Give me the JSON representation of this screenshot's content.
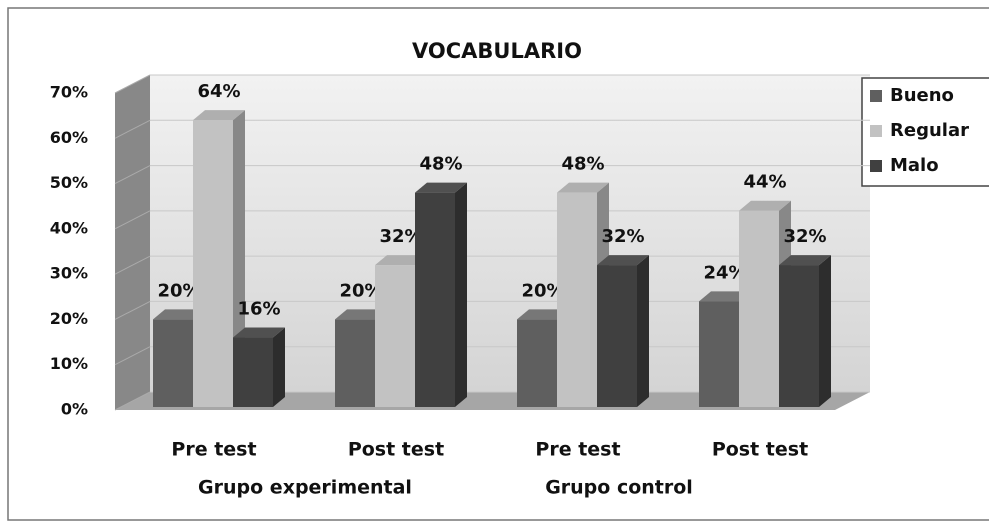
{
  "chart_data": {
    "type": "bar3d",
    "title": "VOCABULARIO",
    "categories": [
      "Pre test",
      "Post test",
      "Pre test",
      "Post test"
    ],
    "group_labels": [
      "Grupo experimental",
      "Grupo control"
    ],
    "series": [
      {
        "name": "Bueno",
        "color": "#5f5f5f",
        "values": [
          20,
          20,
          20,
          24
        ],
        "value_labels": [
          "20%",
          "20%",
          "20%",
          "24%"
        ]
      },
      {
        "name": "Regular",
        "color": "#c2c2c2",
        "values": [
          64,
          32,
          48,
          44
        ],
        "value_labels": [
          "64%",
          "32%",
          "48%",
          "44%"
        ]
      },
      {
        "name": "Malo",
        "color": "#404040",
        "values": [
          16,
          48,
          32,
          32
        ],
        "value_labels": [
          "16%",
          "48%",
          "32%",
          "32%"
        ]
      }
    ],
    "ylim": [
      0,
      70
    ],
    "yticks": [
      {
        "value": 0,
        "label": "0%"
      },
      {
        "value": 10,
        "label": "10%"
      },
      {
        "value": 20,
        "label": "20%"
      },
      {
        "value": 30,
        "label": "30%"
      },
      {
        "value": 40,
        "label": "40%"
      },
      {
        "value": 50,
        "label": "50%"
      },
      {
        "value": 60,
        "label": "60%"
      },
      {
        "value": 70,
        "label": "70%"
      }
    ],
    "grid": true,
    "legend": "right"
  }
}
